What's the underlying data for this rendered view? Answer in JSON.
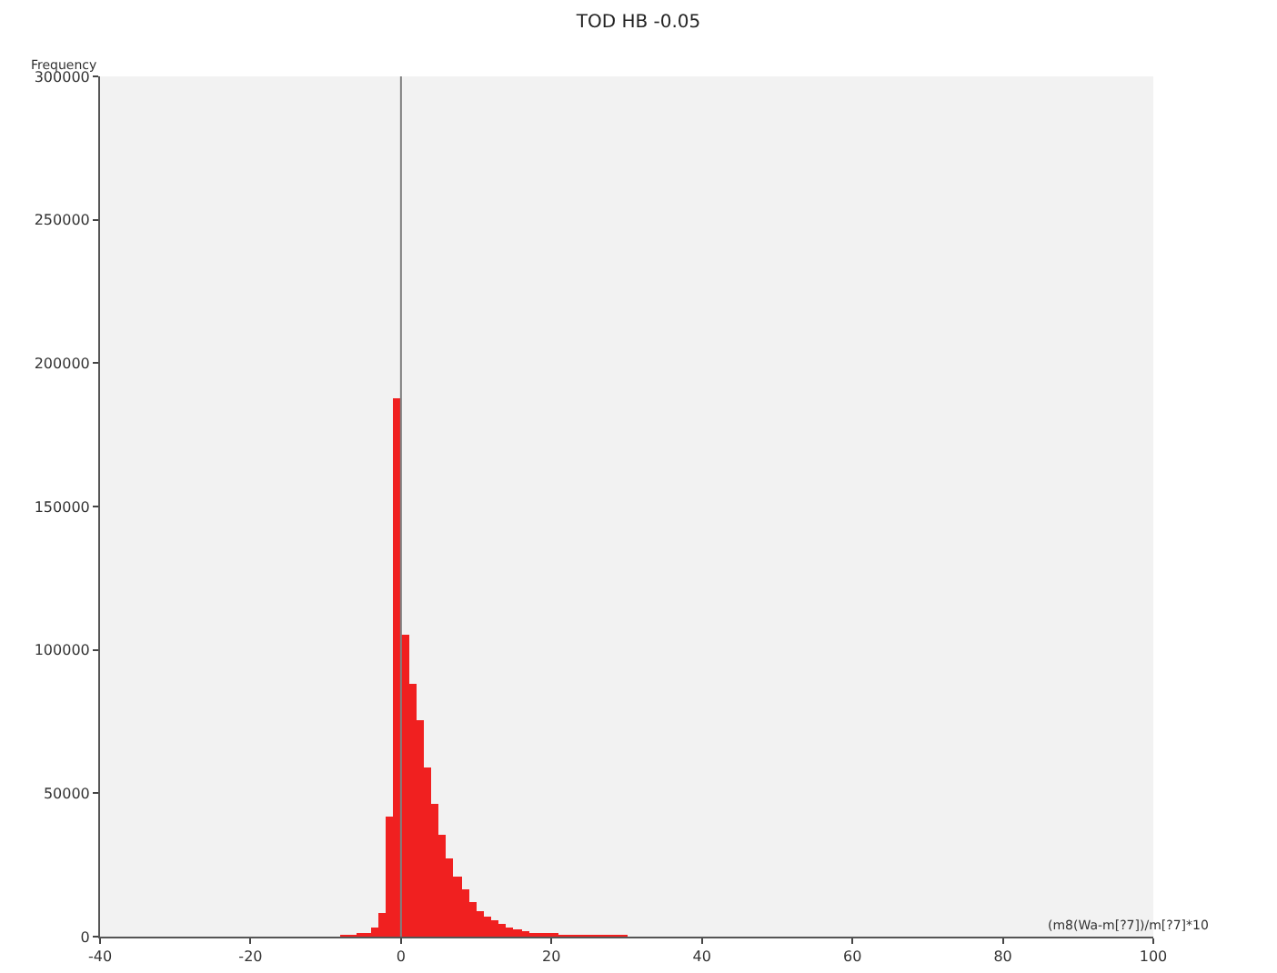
{
  "chart_data": {
    "type": "histogram",
    "title": "TOD HB -0.05",
    "ylabel": "Frequency",
    "xlabel": "(m8(Wa-m[?7])/m[?7]*10",
    "bins": [
      -8,
      -7,
      -6,
      -5,
      -4,
      -3,
      -2,
      -1,
      0,
      1,
      2,
      3,
      4,
      5,
      6,
      7,
      8,
      9,
      10,
      11,
      12,
      13,
      14,
      15,
      16,
      17,
      18,
      19,
      20,
      21,
      22,
      23,
      24,
      25,
      26,
      27,
      28,
      29,
      30
    ],
    "values": [
      200,
      400,
      800,
      1500,
      3000,
      8000,
      42000,
      187700,
      105000,
      88000,
      75500,
      59000,
      46000,
      35500,
      27000,
      21000,
      16500,
      12000,
      9000,
      7000,
      5500,
      4200,
      3300,
      2500,
      2000,
      1500,
      1200,
      1000,
      800,
      600,
      500,
      400,
      300,
      300,
      200,
      200,
      100,
      100
    ],
    "color": "#f02020",
    "xlim": [
      -40,
      100
    ],
    "xticks": [
      -40,
      -20,
      0,
      20,
      40,
      60,
      80,
      100
    ],
    "ylim": [
      0,
      300000
    ],
    "yticks": [
      0,
      50000,
      100000,
      150000,
      200000,
      250000,
      300000
    ],
    "ref_lines": [
      {
        "axis": "x",
        "value": 0,
        "color": "#808080"
      }
    ],
    "grid": false
  }
}
